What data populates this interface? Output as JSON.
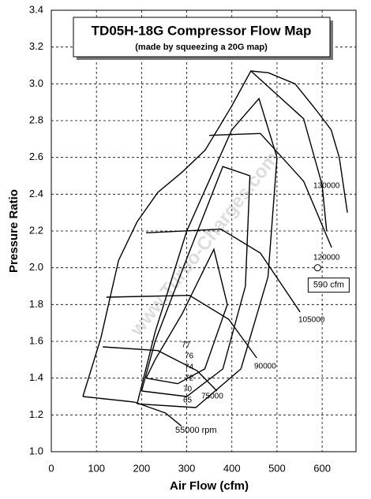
{
  "chart_data": {
    "type": "line",
    "title": "TD05H-18G Compressor Flow Map",
    "subtitle": "(made by squeezing a 20G map)",
    "x_label": "Air Flow (cfm)",
    "y_label": "Pressure Ratio",
    "watermark": "www.Turbo-Charges.com",
    "xlim": [
      0,
      675
    ],
    "ylim": [
      1.0,
      3.4
    ],
    "xticks": [
      0,
      100,
      200,
      300,
      400,
      500,
      600
    ],
    "yticks": [
      {
        "value": 1.0,
        "label": "1.0"
      },
      1.2,
      1.4,
      1.6,
      1.8,
      {
        "value": 2.0,
        "label": "2.0"
      },
      2.2,
      2.4,
      2.6,
      2.8,
      {
        "value": 3.0,
        "label": "3.0"
      },
      3.2,
      3.4
    ],
    "grid": true,
    "color": "#000000",
    "series": [
      {
        "x": [
          70,
          110,
          149,
          190,
          236,
          290,
          341,
          400,
          442,
          481,
          540,
          586,
          620,
          638,
          656
        ],
        "values": [
          1.3,
          1.62,
          2.04,
          2.25,
          2.41,
          2.52,
          2.64,
          2.88,
          3.07,
          3.06,
          3.0,
          2.86,
          2.75,
          2.6,
          2.3
        ]
      },
      {
        "x": [
          70,
          184,
          253,
          288
        ],
        "values": [
          1.3,
          1.27,
          1.21,
          1.14
        ]
      },
      {
        "x": [
          114,
          236,
          323,
          367
        ],
        "values": [
          1.57,
          1.55,
          1.44,
          1.33
        ]
      },
      {
        "x": [
          122,
          306,
          393,
          455
        ],
        "values": [
          1.84,
          1.85,
          1.72,
          1.51
        ]
      },
      {
        "x": [
          210,
          376,
          463,
          551
        ],
        "values": [
          2.19,
          2.21,
          2.08,
          1.76
        ]
      },
      {
        "x": [
          350,
          463,
          559,
          621
        ],
        "values": [
          2.72,
          2.73,
          2.47,
          2.11
        ]
      },
      {
        "x": [
          442,
          559,
          600,
          610
        ],
        "values": [
          3.07,
          2.81,
          2.45,
          2.2
        ]
      },
      {
        "x": [
          210,
          280,
          340,
          390,
          360,
          290,
          230,
          210
        ],
        "values": [
          1.4,
          1.37,
          1.45,
          1.8,
          2.1,
          1.75,
          1.5,
          1.4
        ]
      },
      {
        "x": [
          200,
          300,
          380,
          430,
          440,
          380,
          300,
          230,
          200
        ],
        "values": [
          1.33,
          1.3,
          1.45,
          1.9,
          2.5,
          2.55,
          2.05,
          1.6,
          1.33
        ]
      },
      {
        "x": [
          190,
          320,
          420,
          480,
          500,
          460,
          400,
          300,
          230,
          190
        ],
        "values": [
          1.26,
          1.24,
          1.45,
          1.95,
          2.6,
          2.92,
          2.75,
          2.2,
          1.65,
          1.26
        ]
      }
    ],
    "annotations": [
      "55000 rpm",
      "75000",
      "90000",
      "105000",
      "120000",
      "130000",
      "77",
      "76",
      "74",
      "72",
      "70",
      "65"
    ],
    "point": {
      "x": 590,
      "y": 2.0,
      "label": "590 cfm"
    }
  }
}
